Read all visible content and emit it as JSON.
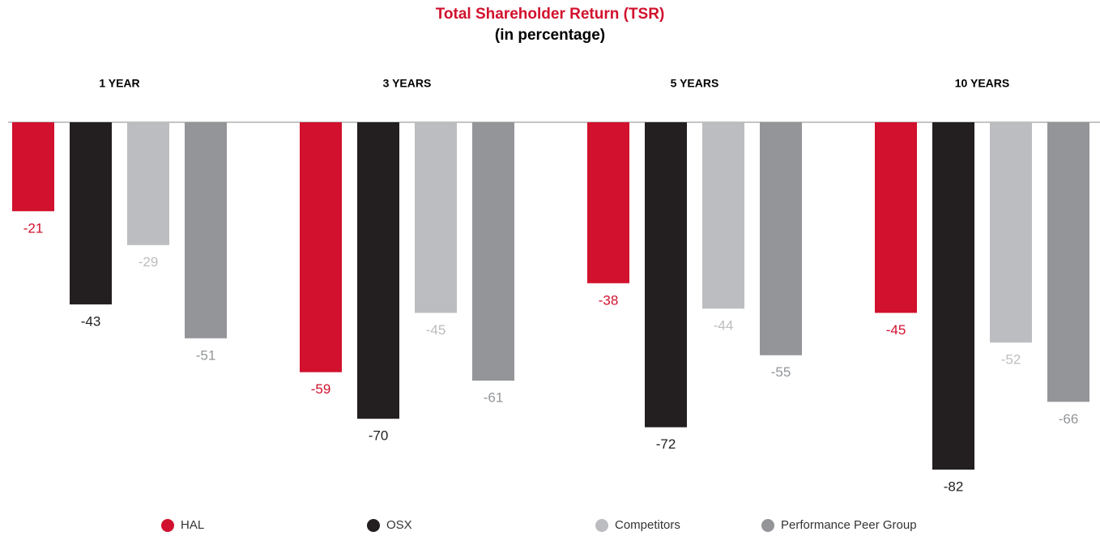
{
  "chart_data": {
    "type": "bar",
    "title": "Total Shareholder Return (TSR)",
    "subtitle": "(in percentage)",
    "categories": [
      "1 YEAR",
      "3 YEARS",
      "5 YEARS",
      "10 YEARS"
    ],
    "series": [
      {
        "name": "HAL",
        "color": "#d1112d",
        "values": [
          -21,
          -59,
          -38,
          -45
        ]
      },
      {
        "name": "OSX",
        "color": "#231f20",
        "values": [
          -43,
          -70,
          -72,
          -82
        ]
      },
      {
        "name": "Competitors",
        "color": "#bcbdc0",
        "values": [
          -29,
          -45,
          -44,
          -52
        ]
      },
      {
        "name": "Performance Peer Group",
        "color": "#939598",
        "values": [
          -51,
          -61,
          -55,
          -66
        ]
      }
    ]
  }
}
